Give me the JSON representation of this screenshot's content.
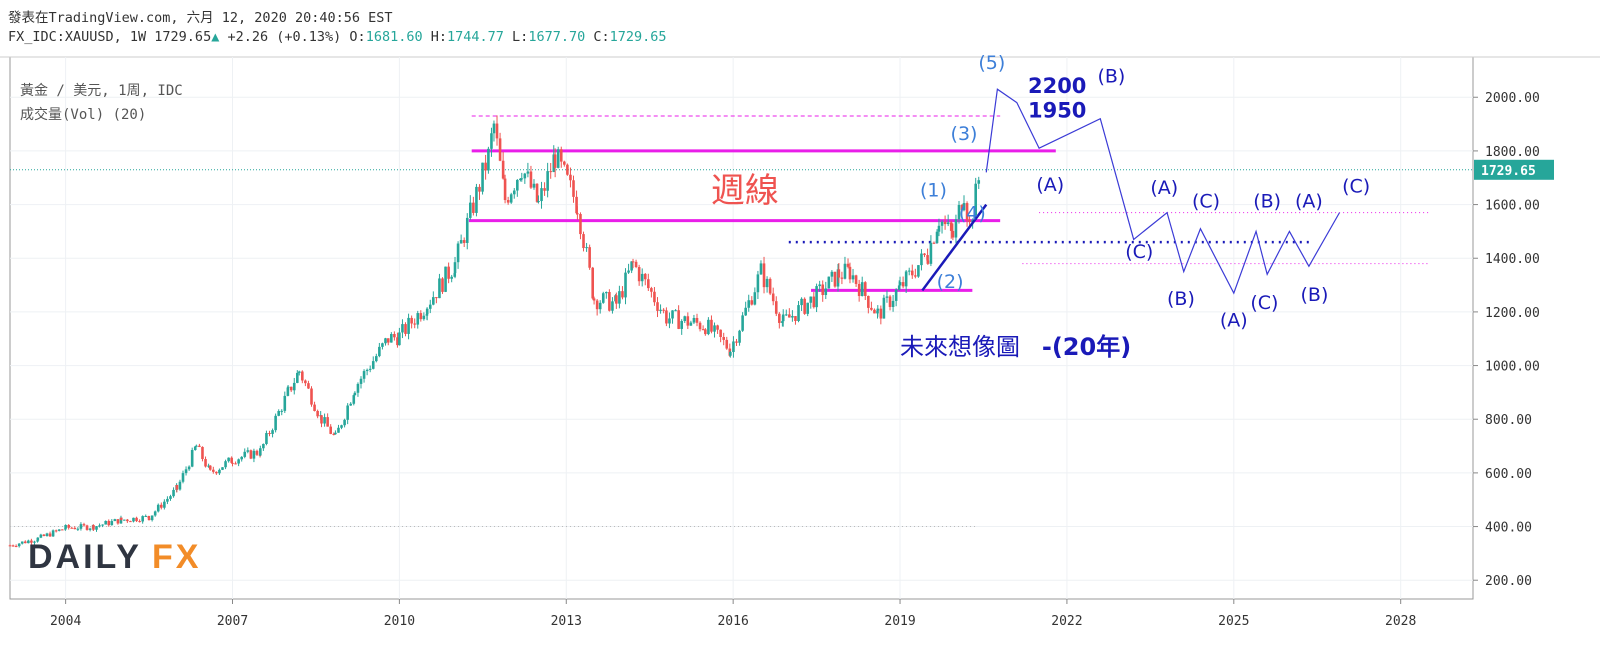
{
  "header": {
    "published": "發表在TradingView.com, 六月 12, 2020 20:40:56 EST",
    "symbol": "FX_IDC:XAUUSD, 1W 1729.65",
    "change_arrow": "▲",
    "change": "+2.26 (+0.13%)",
    "o_label": "O:",
    "o": "1681.60",
    "h_label": "H:",
    "h": "1744.77",
    "l_label": "L:",
    "l": "1677.70",
    "c_label": "C:",
    "c": "1729.65"
  },
  "legend": {
    "instrument": "黃金 / 美元, 1周, IDC",
    "volume": "成交量(Vol) (20)"
  },
  "watermark": {
    "daily": "DAILY",
    "fx": "FX"
  },
  "colors": {
    "magenta": "#e91ee9",
    "navy": "#1a1ab8",
    "wave_light": "#3d7fd8",
    "teal": "#26a69a",
    "red": "#ef5350",
    "dfx_gray": "#2f3541",
    "dfx_orange": "#f28c28"
  },
  "chart_data": {
    "type": "line",
    "title": "黃金 / 美元, 1周, IDC",
    "x_axis": {
      "min": 2003.0,
      "max": 2029.3,
      "ticks": [
        2004,
        2007,
        2010,
        2013,
        2016,
        2019,
        2022,
        2025,
        2028
      ]
    },
    "y_axis": {
      "min": 130,
      "max": 2150,
      "position": "right",
      "ticks": [
        200,
        400,
        600,
        800,
        1000,
        1200,
        1400,
        1600,
        1800,
        2000
      ]
    },
    "last_price": {
      "value": 1729.65,
      "label": "1729.65"
    },
    "series": [
      {
        "kind": "candlestick",
        "up_color": "#26a69a",
        "down_color": "#ef5350",
        "points": [
          [
            2003.0,
            330
          ],
          [
            2003.5,
            355
          ],
          [
            2004.0,
            395
          ],
          [
            2004.5,
            400
          ],
          [
            2005.0,
            425
          ],
          [
            2005.5,
            435
          ],
          [
            2006.0,
            540
          ],
          [
            2006.35,
            700
          ],
          [
            2006.6,
            600
          ],
          [
            2007.0,
            650
          ],
          [
            2007.5,
            680
          ],
          [
            2008.0,
            900
          ],
          [
            2008.2,
            980
          ],
          [
            2008.6,
            800
          ],
          [
            2008.85,
            730
          ],
          [
            2009.2,
            920
          ],
          [
            2009.8,
            1100
          ],
          [
            2010.0,
            1110
          ],
          [
            2010.5,
            1230
          ],
          [
            2011.0,
            1380
          ],
          [
            2011.6,
            1780
          ],
          [
            2011.7,
            1895
          ],
          [
            2011.9,
            1620
          ],
          [
            2012.2,
            1740
          ],
          [
            2012.5,
            1600
          ],
          [
            2012.8,
            1780
          ],
          [
            2013.2,
            1600
          ],
          [
            2013.5,
            1250
          ],
          [
            2013.9,
            1230
          ],
          [
            2014.2,
            1380
          ],
          [
            2014.8,
            1180
          ],
          [
            2015.5,
            1150
          ],
          [
            2015.95,
            1060
          ],
          [
            2016.5,
            1350
          ],
          [
            2016.9,
            1160
          ],
          [
            2017.5,
            1260
          ],
          [
            2017.9,
            1340
          ],
          [
            2018.1,
            1350
          ],
          [
            2018.6,
            1190
          ],
          [
            2019.0,
            1290
          ],
          [
            2019.5,
            1420
          ],
          [
            2019.7,
            1550
          ],
          [
            2019.95,
            1480
          ],
          [
            2020.15,
            1650
          ],
          [
            2020.25,
            1520
          ],
          [
            2020.45,
            1729.65
          ]
        ]
      }
    ],
    "annotations": {
      "horizontal_lines": [
        {
          "y": 1800,
          "from": 2011.3,
          "to": 2021.8,
          "style": "solid",
          "color": "#e91ee9"
        },
        {
          "y": 1540,
          "from": 2011.25,
          "to": 2020.8,
          "style": "solid",
          "color": "#e91ee9"
        },
        {
          "y": 1280,
          "from": 2017.4,
          "to": 2020.3,
          "style": "solid",
          "color": "#e91ee9"
        },
        {
          "y": 1930,
          "from": 2011.3,
          "to": 2020.8,
          "style": "dashed",
          "color": "#e91ee9"
        },
        {
          "y": 1570,
          "from": 2021.5,
          "to": 2028.5,
          "style": "dotted",
          "color": "#e91ee9"
        },
        {
          "y": 1380,
          "from": 2021.2,
          "to": 2028.5,
          "style": "dotted",
          "color": "#e91ee9"
        },
        {
          "y": 1460,
          "from": 2017.0,
          "to": 2026.4,
          "style": "dotted",
          "color": "#1a1ab8"
        },
        {
          "y": 400,
          "from": 2003.0,
          "to": 2020.4,
          "style": "dotted",
          "color": "#bbbbbb"
        }
      ],
      "trendline": {
        "from": [
          2019.4,
          1280
        ],
        "to": [
          2020.55,
          1600
        ]
      },
      "future_path": [
        [
          2020.55,
          1720
        ],
        [
          2020.75,
          2030
        ],
        [
          2021.1,
          1980
        ],
        [
          2021.5,
          1810
        ],
        [
          2022.6,
          1920
        ],
        [
          2023.2,
          1470
        ],
        [
          2023.8,
          1570
        ],
        [
          2024.1,
          1350
        ],
        [
          2024.4,
          1510
        ],
        [
          2025.0,
          1270
        ],
        [
          2025.4,
          1500
        ],
        [
          2025.6,
          1340
        ],
        [
          2026.0,
          1500
        ],
        [
          2026.35,
          1370
        ],
        [
          2026.9,
          1570
        ]
      ],
      "wave_labels": [
        {
          "text": "(1)",
          "x": 2019.6,
          "y": 1630,
          "color": "#3d7fd8"
        },
        {
          "text": "(2)",
          "x": 2019.9,
          "y": 1290,
          "color": "#3d7fd8"
        },
        {
          "text": "(3)",
          "x": 2020.15,
          "y": 1840,
          "color": "#3d7fd8"
        },
        {
          "text": "(4)",
          "x": 2020.3,
          "y": 1545,
          "color": "#3d7fd8"
        },
        {
          "text": "(5)",
          "x": 2020.65,
          "y": 2105,
          "color": "#3d7fd8"
        },
        {
          "text": "(A)",
          "x": 2021.7,
          "y": 1650,
          "color": "#1a1ab8"
        },
        {
          "text": "(B)",
          "x": 2022.8,
          "y": 2055,
          "color": "#1a1ab8"
        },
        {
          "text": "(C)",
          "x": 2023.3,
          "y": 1400,
          "color": "#1a1ab8"
        },
        {
          "text": "(A)",
          "x": 2023.75,
          "y": 1640,
          "color": "#1a1ab8"
        },
        {
          "text": "(B)",
          "x": 2024.05,
          "y": 1225,
          "color": "#1a1ab8"
        },
        {
          "text": "(C)",
          "x": 2024.5,
          "y": 1590,
          "color": "#1a1ab8"
        },
        {
          "text": "(A)",
          "x": 2025.0,
          "y": 1145,
          "color": "#1a1ab8"
        },
        {
          "text": "(C)",
          "x": 2025.55,
          "y": 1210,
          "color": "#1a1ab8"
        },
        {
          "text": "(B)",
          "x": 2025.6,
          "y": 1590,
          "color": "#1a1ab8"
        },
        {
          "text": "(A)",
          "x": 2026.35,
          "y": 1590,
          "color": "#1a1ab8"
        },
        {
          "text": "(B)",
          "x": 2026.45,
          "y": 1240,
          "color": "#1a1ab8"
        },
        {
          "text": "(C)",
          "x": 2027.2,
          "y": 1645,
          "color": "#1a1ab8"
        }
      ],
      "price_targets": [
        {
          "text": "2200",
          "x": 2021.3,
          "y": 2015
        },
        {
          "text": "1950",
          "x": 2021.3,
          "y": 1925
        }
      ],
      "text_labels": [
        {
          "text": "週線",
          "x": 2015.6,
          "y": 1610,
          "color": "#ef5350"
        },
        {
          "text": "未來想像圖",
          "x": 2019.0,
          "y": 1040,
          "color": "#1a1ab8"
        },
        {
          "text": "-(20年)",
          "x": 2021.55,
          "y": 1040,
          "color": "#1a1ab8"
        }
      ]
    }
  }
}
